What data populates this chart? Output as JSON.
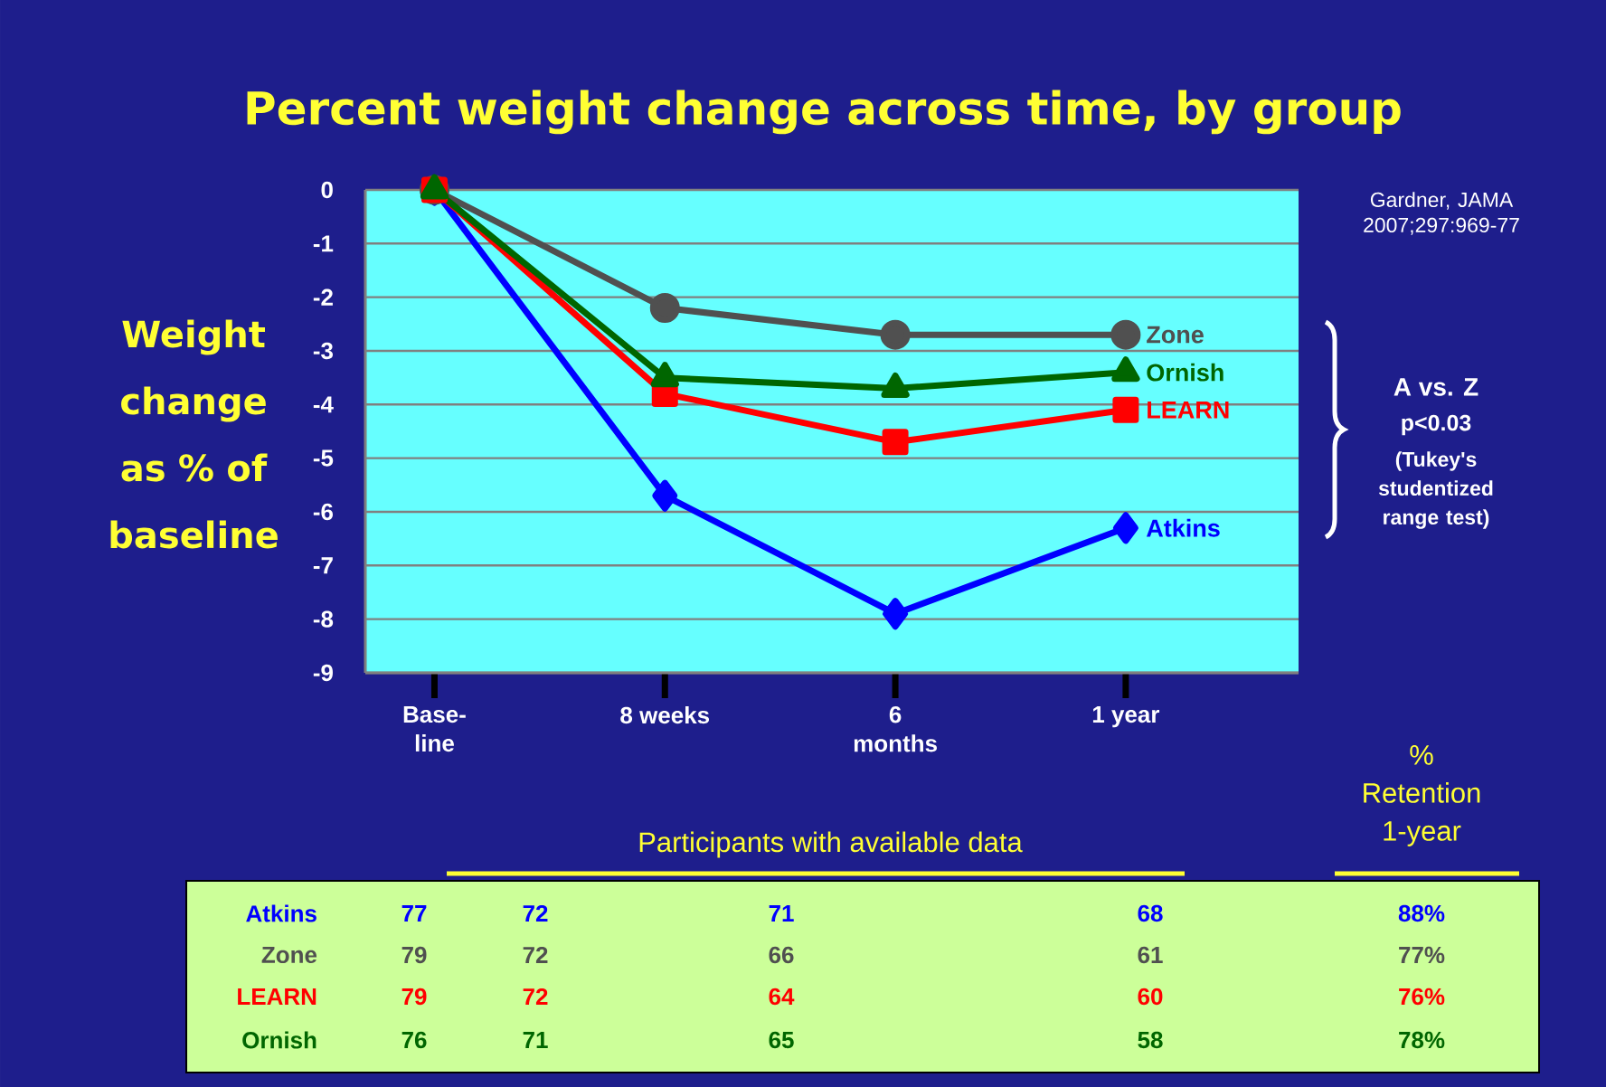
{
  "chart_data": {
    "type": "line",
    "title": "Percent weight change across time, by group",
    "ylabel": "Weight change as % of baseline",
    "categories": [
      "Base- line",
      "8 weeks",
      "6 months",
      "1 year"
    ],
    "ylim": [
      -9,
      0
    ],
    "yticks": [
      0,
      -1,
      -2,
      -3,
      -4,
      -5,
      -6,
      -7,
      -8,
      -9
    ],
    "grid": "y",
    "legend": false,
    "series": [
      {
        "name": "Atkins",
        "color": "#0000ff",
        "marker": "diamond",
        "values": [
          0,
          -5.7,
          -7.9,
          -6.3
        ]
      },
      {
        "name": "Zone",
        "color": "#505050",
        "marker": "circle",
        "values": [
          0,
          -2.2,
          -2.7,
          -2.7
        ]
      },
      {
        "name": "LEARN",
        "color": "#ff0000",
        "marker": "square",
        "values": [
          0,
          -3.8,
          -4.7,
          -4.1
        ]
      },
      {
        "name": "Ornish",
        "color": "#006600",
        "marker": "triangle",
        "values": [
          0,
          -3.5,
          -3.7,
          -3.4
        ]
      }
    ],
    "annotations": [
      "Gardner, JAMA 2007;297:969-77",
      "A vs. Z",
      "p<0.03",
      "(Tukey's studentized range test)",
      "Participants with available data",
      "% Retention 1-year",
      "77",
      "72",
      "71",
      "68",
      "88%",
      "79",
      "72",
      "66",
      "61",
      "77%",
      "79",
      "72",
      "64",
      "60",
      "76%",
      "76",
      "71",
      "65",
      "58",
      "78%"
    ]
  }
}
